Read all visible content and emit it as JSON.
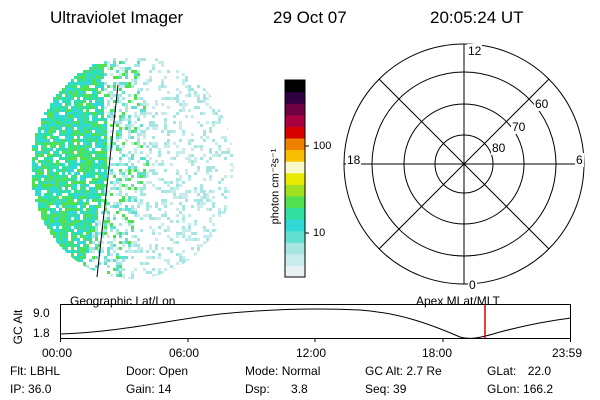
{
  "header": {
    "title": "Ultraviolet Imager",
    "date": "29 Oct 07",
    "time": "20:05:24 UT"
  },
  "colorbar": {
    "unit": "photon cm⁻²s⁻¹",
    "tick_labels": [
      "100",
      "10"
    ],
    "colors": [
      "#e8f2f2",
      "#c8ecec",
      "#a6e6e2",
      "#60e0d0",
      "#30d8d8",
      "#30e0a0",
      "#50e050",
      "#a0e020",
      "#e8e800",
      "#f8f8c8",
      "#f8c000",
      "#f08000",
      "#d80000",
      "#a80040",
      "#700040",
      "#300040",
      "#000000"
    ]
  },
  "polar_plot": {
    "hour_labels": {
      "top": "12",
      "left": "18",
      "right": "6",
      "bottom": "0"
    },
    "lat_labels": [
      "60",
      "70",
      "80"
    ]
  },
  "orbit_panel": {
    "left_title": "Geographic Lat/Lon",
    "right_title": "Apex MLat/MLT",
    "y_axis_title": "GC Alt",
    "y_ticks": [
      "9.0",
      "1.8"
    ],
    "x_ticks": [
      "00:00",
      "06:00",
      "12:00",
      "18:00",
      "23:59"
    ],
    "current_time_marker_color": "#e00000"
  },
  "status": {
    "flt": {
      "label": "Flt:",
      "value": "LBHL"
    },
    "ip": {
      "label": "IP:",
      "value": "36.0"
    },
    "door": {
      "label": "Door:",
      "value": "Open"
    },
    "gain": {
      "label": "Gain:",
      "value": "14"
    },
    "mode": {
      "label": "Mode:",
      "value": "Normal"
    },
    "dsp": {
      "label": "Dsp:",
      "value": "3.8"
    },
    "gc_alt": {
      "label": "GC Alt:",
      "value": "2.7 Re"
    },
    "seq": {
      "label": "Seq:",
      "value": "39"
    },
    "glat": {
      "label": "GLat:",
      "value": "22.0"
    },
    "glon": {
      "label": "GLon:",
      "value": "166.2"
    }
  }
}
